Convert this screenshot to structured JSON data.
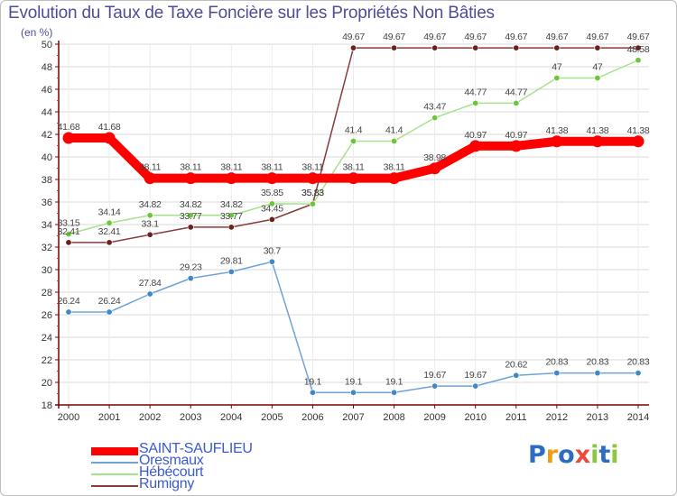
{
  "title": "Evolution du Taux de Taxe Foncière sur les Propriétés Non Bâties",
  "unit_label": "(en %)",
  "logo_text": "Proxiti",
  "colors": {
    "title": "#4d4d99",
    "axis": "#7a0000",
    "grid": "#d9d9d9",
    "legend_text": "#3a5bd0",
    "logo": [
      "#2d6cc0",
      "#f39c12",
      "#2d6cc0",
      "#e74c3c",
      "#8dc63f",
      "#2d6cc0",
      "#8dc63f"
    ]
  },
  "chart_data": {
    "type": "line",
    "title": "Evolution du Taux de Taxe Foncière sur les Propriétés Non Bâties",
    "ylabel": "(en %)",
    "xlabel": "",
    "x": [
      "2000",
      "2001",
      "2002",
      "2003",
      "2004",
      "2005",
      "2006",
      "2007",
      "2008",
      "2009",
      "2010",
      "2011",
      "2012",
      "2013",
      "2014"
    ],
    "ylim": [
      18,
      50
    ],
    "yticks": [
      18,
      20,
      22,
      24,
      26,
      28,
      30,
      32,
      34,
      36,
      38,
      40,
      42,
      44,
      46,
      48,
      50
    ],
    "grid": true,
    "legend_position": "bottom-left",
    "series": [
      {
        "name": "SAINT-SAUFLIEU",
        "color": "#ff0000",
        "marker_color": "#ff0000",
        "width": 10,
        "values": [
          41.68,
          41.68,
          38.11,
          38.11,
          38.11,
          38.11,
          38.11,
          38.11,
          38.11,
          38.98,
          40.97,
          40.97,
          41.38,
          41.38,
          41.38
        ],
        "labels": [
          "41.68",
          "41.68",
          "38.11",
          "38.11",
          "38.11",
          "38.11",
          "38.11",
          "38.11",
          "38.11",
          "38.98",
          "40.97",
          "40.97",
          "41.38",
          "41.38",
          "41.38"
        ]
      },
      {
        "name": "Oresmaux",
        "color": "#6fa3d8",
        "marker_color": "#3f88c8",
        "width": 1.5,
        "values": [
          26.24,
          26.24,
          27.84,
          29.23,
          29.81,
          30.7,
          19.1,
          19.1,
          19.1,
          19.67,
          19.67,
          20.62,
          20.83,
          20.83,
          20.83
        ],
        "labels": [
          "26.24",
          "26.24",
          "27.84",
          "29.23",
          "29.81",
          "30.7",
          "19.1",
          "19.1",
          "19.1",
          "19.67",
          "19.67",
          "20.62",
          "20.83",
          "20.83",
          "20.83"
        ]
      },
      {
        "name": "Hébécourt",
        "color": "#a4e38a",
        "marker_color": "#6cc63a",
        "width": 1.5,
        "values": [
          33.15,
          34.14,
          34.82,
          34.82,
          34.82,
          35.85,
          35.83,
          41.4,
          41.4,
          43.47,
          44.77,
          44.77,
          47,
          47,
          48.58
        ],
        "labels": [
          "33.15",
          "34.14",
          "34.82",
          "34.82",
          "34.82",
          "35.85",
          "35.83",
          "41.4",
          "41.4",
          "43.47",
          "44.77",
          "44.77",
          "47",
          "47",
          "48.58"
        ]
      },
      {
        "name": "Rumigny",
        "color": "#8a3a3a",
        "marker_color": "#6b1f1f",
        "width": 1.5,
        "values": [
          32.41,
          32.41,
          33.1,
          33.77,
          33.77,
          34.45,
          35.83,
          49.67,
          49.67,
          49.67,
          49.67,
          49.67,
          49.67,
          49.67,
          49.67
        ],
        "labels": [
          "32.41",
          "32.41",
          "33.1",
          "33.77",
          "33.77",
          "34.45",
          "35.83",
          "49.67",
          "49.67",
          "49.67",
          "49.67",
          "49.67",
          "49.67",
          "49.67",
          "49.67"
        ]
      }
    ]
  }
}
